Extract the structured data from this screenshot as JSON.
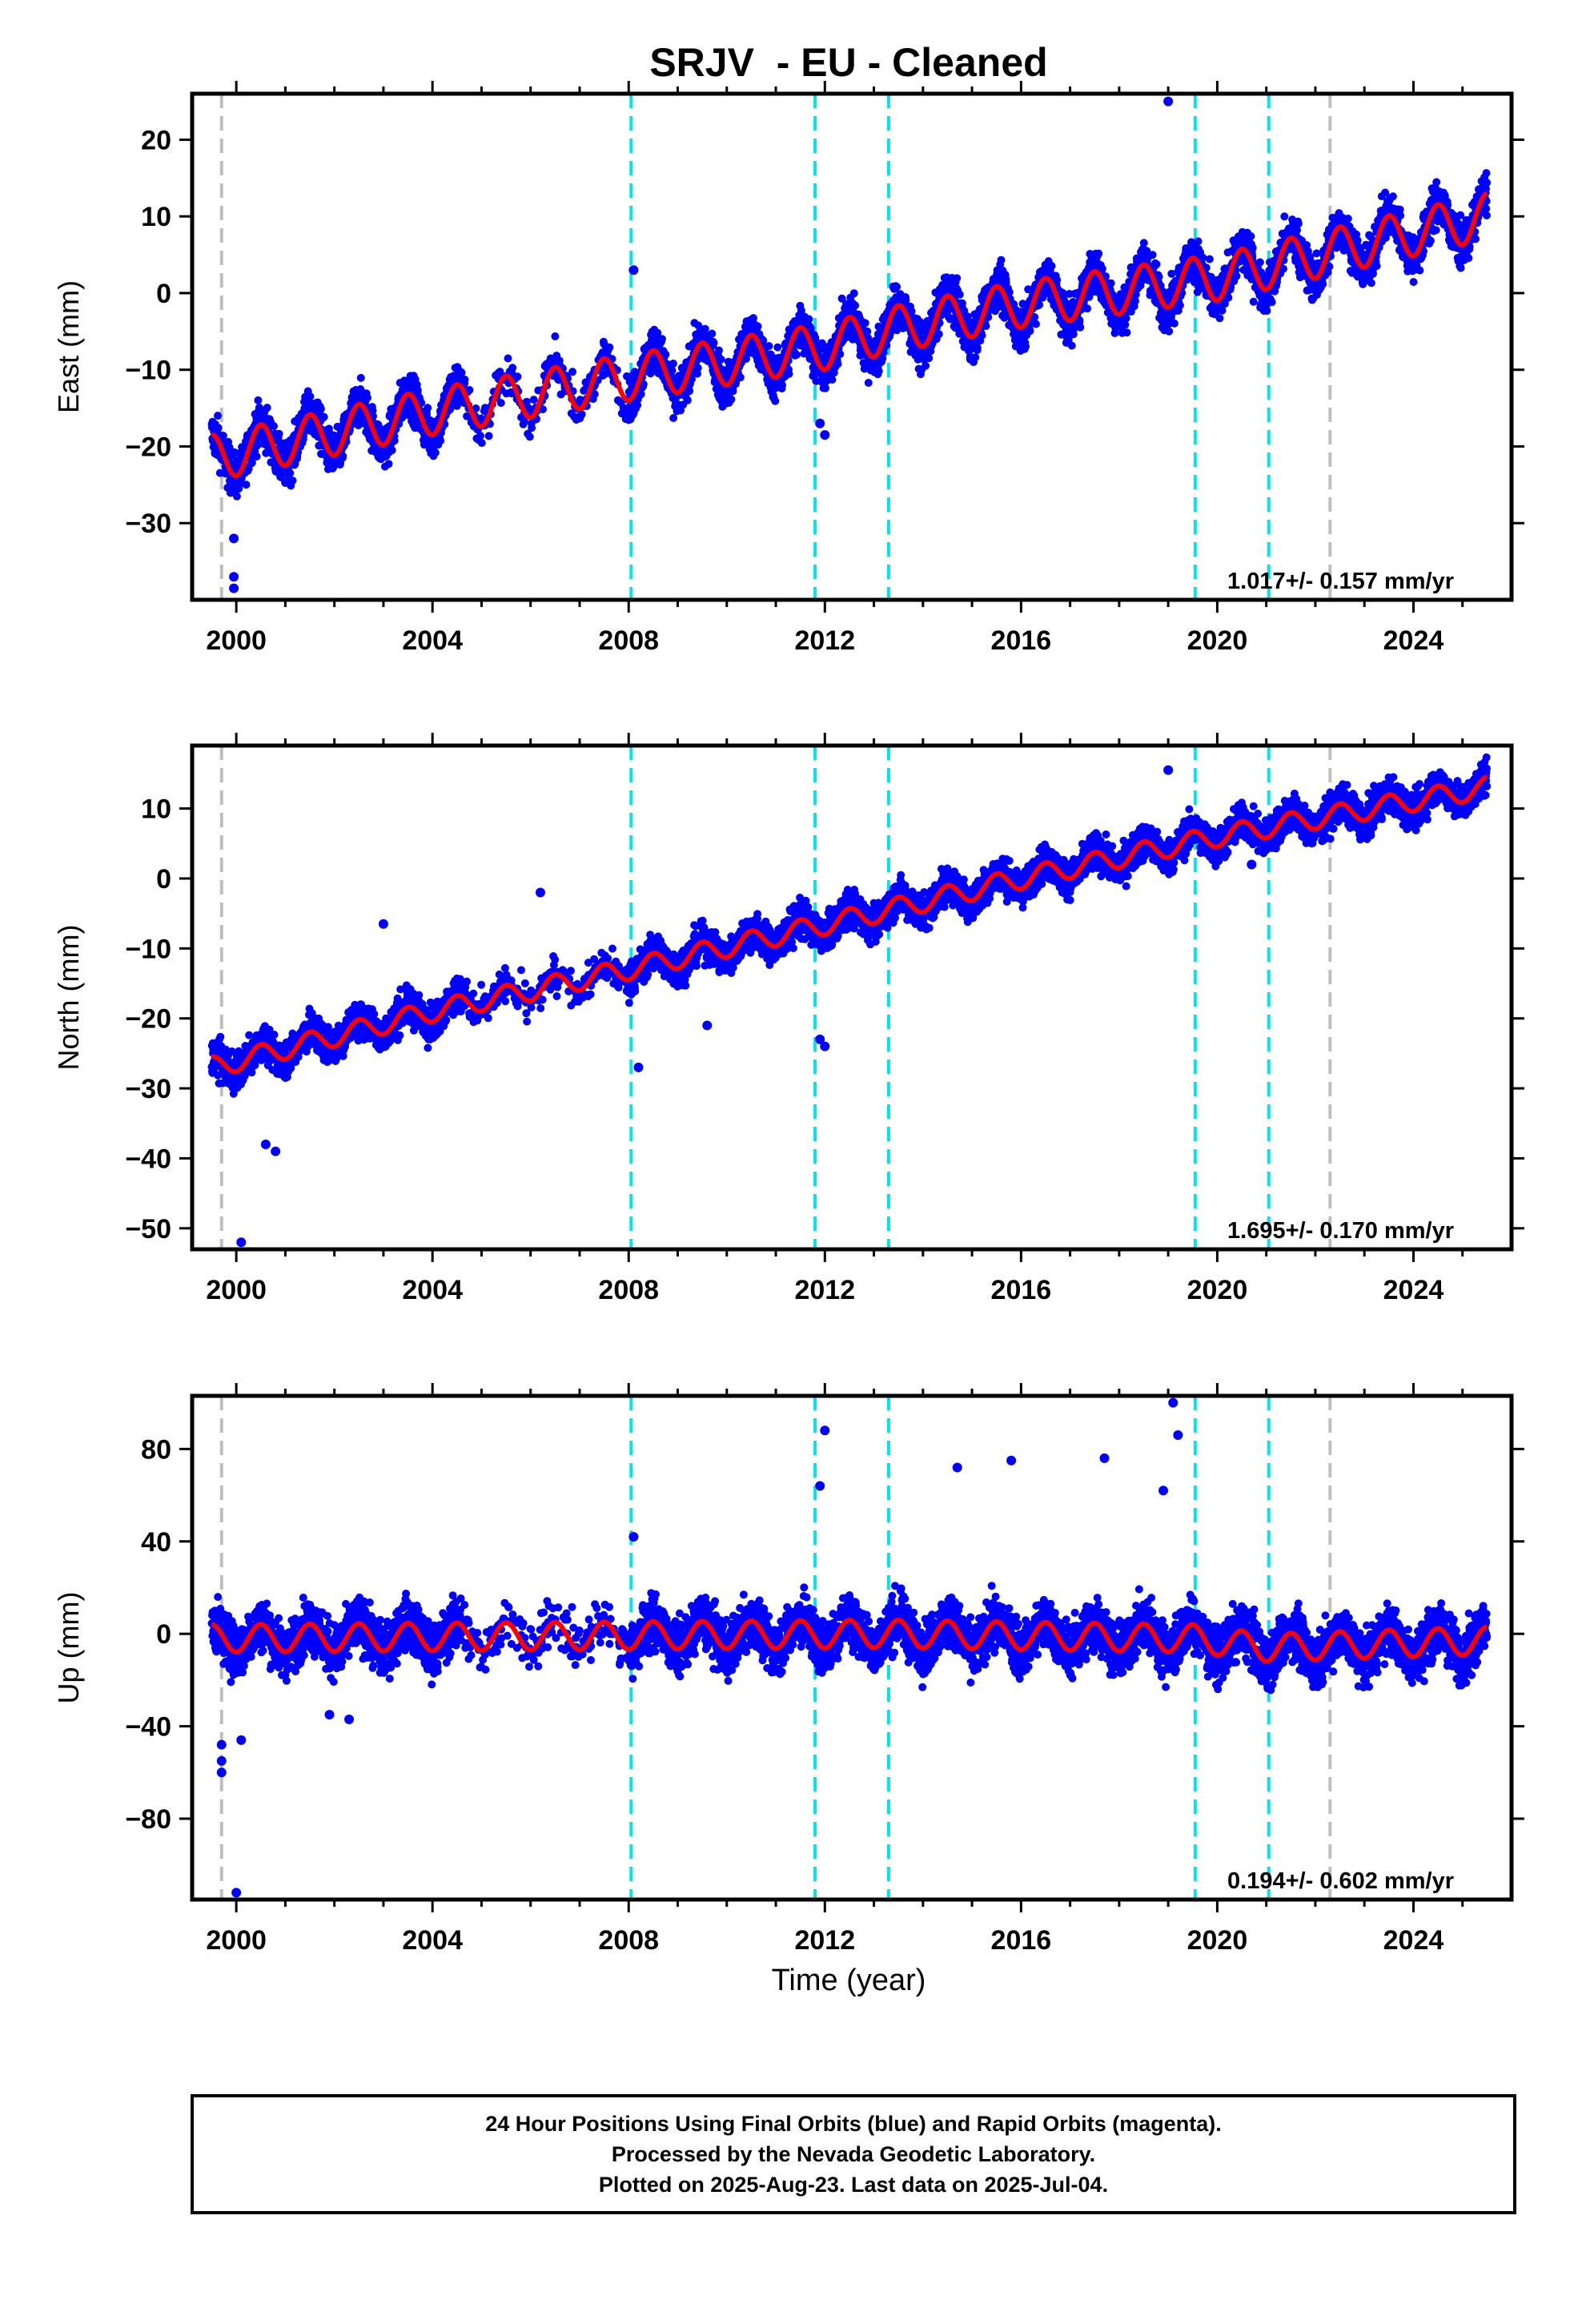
{
  "chart_data": {
    "type": "scatter",
    "title": "SRJV  - EU - Cleaned",
    "xlabel": "Time (year)",
    "x_ticks": [
      "2000",
      "2004",
      "2008",
      "2012",
      "2016",
      "2020",
      "2024"
    ],
    "xlim": [
      1999.1,
      2026.0
    ],
    "data_colors": {
      "points": "#0000ff",
      "model": "#ff0000",
      "offset_equipment": "#00e5ee",
      "offset_other": "#bfbfbf"
    },
    "offsets_cyan": [
      2008.05,
      2011.8,
      2013.3,
      2019.55,
      2021.05
    ],
    "offsets_grey": [
      1999.7,
      2022.3
    ],
    "panels": [
      {
        "ylabel": "East (mm)",
        "ylim": [
          -40,
          26
        ],
        "yticks": [
          20,
          10,
          0,
          -10,
          -20,
          -30
        ],
        "rate": "1.017+/- 0.157 mm/yr",
        "trend": [
          [
            1999.5,
            -21.5
          ],
          [
            2004.0,
            -15.5
          ],
          [
            2008.0,
            -11.0
          ],
          [
            2012.0,
            -7.0
          ],
          [
            2013.2,
            -5.0
          ],
          [
            2016.0,
            -1.5
          ],
          [
            2020.0,
            2.0
          ],
          [
            2025.5,
            10.0
          ]
        ],
        "amplitude": 3.0,
        "scatter": 2.0,
        "gaps": [
          [
            2004.6,
            2008.0
          ]
        ],
        "outliers": [
          [
            1999.95,
            -32.0
          ],
          [
            1999.95,
            -37.0
          ],
          [
            1999.95,
            -38.5
          ],
          [
            2011.9,
            -17.0
          ],
          [
            2012.0,
            -18.5
          ],
          [
            2019.0,
            25.0
          ],
          [
            2008.1,
            3.0
          ]
        ]
      },
      {
        "ylabel": "North (mm)",
        "ylim": [
          -53,
          19
        ],
        "yticks": [
          10,
          0,
          -10,
          -20,
          -30,
          -40,
          -50
        ],
        "rate": "1.695+/- 0.170 mm/yr",
        "trend": [
          [
            1999.5,
            -27.0
          ],
          [
            2004.0,
            -19.0
          ],
          [
            2008.0,
            -13.0
          ],
          [
            2013.3,
            -4.5
          ],
          [
            2016.0,
            0.0
          ],
          [
            2020.0,
            6.0
          ],
          [
            2025.5,
            13.0
          ]
        ],
        "amplitude": 1.5,
        "scatter": 1.8,
        "gaps": [
          [
            2004.6,
            2008.0
          ]
        ],
        "outliers": [
          [
            2000.1,
            -52.0
          ],
          [
            2000.6,
            -38.0
          ],
          [
            2000.8,
            -39.0
          ],
          [
            2006.2,
            -2.0
          ],
          [
            2003.0,
            -6.5
          ],
          [
            2011.9,
            -23.0
          ],
          [
            2012.0,
            -24.0
          ],
          [
            2008.2,
            -27.0
          ],
          [
            2009.6,
            -21.0
          ],
          [
            2019.0,
            15.5
          ],
          [
            2020.7,
            2.0
          ]
        ]
      },
      {
        "ylabel": "Up (mm)",
        "ylim": [
          -115,
          103
        ],
        "yticks": [
          80,
          40,
          0,
          -40,
          -80
        ],
        "rate": "0.194+/- 0.602 mm/yr",
        "trend": [
          [
            1999.5,
            -2.0
          ],
          [
            2013.3,
            0.0
          ],
          [
            2019.5,
            -2.0
          ],
          [
            2021.0,
            -6.0
          ],
          [
            2025.5,
            -3.0
          ]
        ],
        "amplitude": 6.0,
        "scatter": 8.0,
        "gaps": [
          [
            2004.6,
            2008.0
          ]
        ],
        "outliers": [
          [
            1999.7,
            -48.0
          ],
          [
            1999.7,
            -55.0
          ],
          [
            1999.7,
            -60.0
          ],
          [
            2000.0,
            -112.0
          ],
          [
            2000.1,
            -46.0
          ],
          [
            2012.0,
            88.0
          ],
          [
            2011.9,
            64.0
          ],
          [
            2019.1,
            100.0
          ],
          [
            2019.2,
            86.0
          ],
          [
            2014.7,
            72.0
          ],
          [
            2015.8,
            75.0
          ],
          [
            2017.7,
            76.0
          ],
          [
            2018.9,
            62.0
          ],
          [
            2008.1,
            42.0
          ],
          [
            2002.3,
            -37.0
          ],
          [
            2001.9,
            -35.0
          ]
        ]
      }
    ]
  },
  "caption": {
    "line1": "24 Hour Positions Using Final Orbits (blue) and Rapid Orbits (magenta).",
    "line2": "Processed by the Nevada Geodetic Laboratory.",
    "line3": "Plotted on 2025-Aug-23. Last data on 2025-Jul-04."
  }
}
